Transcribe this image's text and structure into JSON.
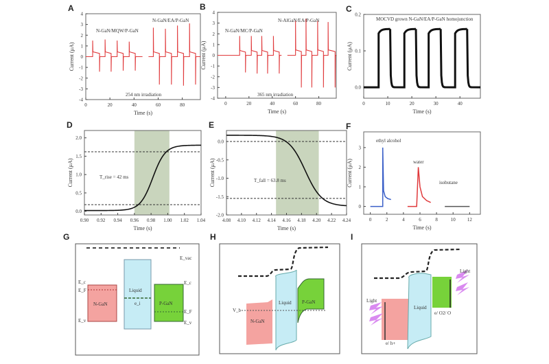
{
  "colors": {
    "red": "#e0393b",
    "blue": "#3a5fc8",
    "gray": "#555555",
    "shade": "#c9d5bd",
    "n_region": "#f4a3a0",
    "liquid": "#c6ecf5",
    "p_region": "#77d23a",
    "lightning": "#d98af0"
  },
  "chart_data": [
    {
      "id": "A",
      "type": "line",
      "panel_label": "A",
      "xlabel": "Time (s)",
      "ylabel": "Current (μA)",
      "xlim": [
        0,
        95
      ],
      "ylim": [
        -4,
        4
      ],
      "xticks": [
        0,
        20,
        40,
        60,
        80
      ],
      "yticks": [
        -4,
        -3,
        -2,
        -1,
        0,
        1,
        2,
        3,
        4
      ],
      "annotations": [
        "N-GaN/MQW/P-GaN",
        "N-GaN/EA/P-GaN",
        "254 nm irradiation"
      ],
      "groups": [
        {
          "range": [
            0,
            47
          ],
          "plateau": 0.3,
          "on": [
            5.7,
            16,
            26,
            36
          ],
          "off": [
            11.4,
            21,
            31,
            41
          ],
          "peak_on": [
            1.5,
            1.6,
            1.5,
            1.4
          ],
          "peak_off": [
            -1.4,
            -1.4,
            -1.3,
            -1.3
          ]
        },
        {
          "range": [
            52,
            95
          ],
          "plateau": 0.3,
          "on": [
            56,
            66,
            76,
            86
          ],
          "off": [
            61,
            71,
            81,
            91
          ],
          "peak_on": [
            2.7,
            2.6,
            2.9,
            3.1
          ],
          "peak_off": [
            -2.6,
            -2.6,
            -2.7,
            -2.6
          ]
        }
      ],
      "color": "red"
    },
    {
      "id": "B",
      "type": "line",
      "panel_label": "B",
      "xlabel": "Time (s)",
      "ylabel": "Current (μA)",
      "xlim": [
        -7,
        95
      ],
      "ylim": [
        -4,
        4
      ],
      "xticks": [
        0,
        20,
        40,
        60,
        80
      ],
      "yticks": [
        -4,
        -3,
        -2,
        -1,
        0,
        1,
        2,
        3,
        4
      ],
      "annotations": [
        "N-GaN/MC/P-GaN",
        "N-AlGaN/EA/P-GaN",
        "365 nm irradiation"
      ],
      "groups": [
        {
          "range": [
            -7,
            48
          ],
          "plateau": 0.3,
          "on": [
            12,
            22,
            31,
            41
          ],
          "off": [
            17,
            27,
            36,
            46
          ],
          "peak_on": [
            1.8,
            1.8,
            1.8,
            1.8
          ],
          "peak_off": [
            -1.6,
            -1.7,
            -1.7,
            -1.7
          ]
        },
        {
          "range": [
            53,
            95
          ],
          "plateau": 0.35,
          "on": [
            60,
            69,
            79,
            88
          ],
          "off": [
            65,
            74,
            84,
            94
          ],
          "peak_on": [
            3.2,
            3.4,
            3.2,
            3.1
          ],
          "peak_off": [
            -3.0,
            -3.0,
            -3.0,
            -3.0
          ]
        }
      ],
      "color": "red"
    },
    {
      "id": "C",
      "type": "line",
      "panel_label": "C",
      "xlabel": "Time (s)",
      "ylabel": "Current (μA)",
      "xlim": [
        0,
        48.5
      ],
      "ylim": [
        -0.03,
        0.2
      ],
      "xticks": [
        0,
        10,
        20,
        30,
        40
      ],
      "yticks": [
        0.0,
        0.1,
        0.2
      ],
      "annotations": [
        "MOCVD grown N-GaN/EA/P-GaN homojunction"
      ],
      "square_wave": {
        "low": 0.0,
        "high": 0.16,
        "on": [
          6.2,
          16.9,
          27,
          38
        ],
        "off": [
          11,
          21.7,
          32,
          43
        ]
      },
      "color": "black"
    },
    {
      "id": "D",
      "type": "line",
      "panel_label": "D",
      "xlabel": "Time (s)",
      "ylabel": "Current (μA)",
      "xlim": [
        0.9,
        1.04
      ],
      "ylim": [
        -0.1,
        2.2
      ],
      "xticks": [
        0.9,
        0.92,
        0.94,
        0.96,
        0.98,
        1.0,
        1.02,
        1.04
      ],
      "yticks": [
        0.0,
        0.5,
        1.0,
        1.5,
        2.0
      ],
      "annotations": [
        "T_rise = 42 ms"
      ],
      "shaded": [
        0.96,
        1.002
      ],
      "dashed_levels": [
        0.18,
        1.62
      ],
      "sigmoid": {
        "low": 0.02,
        "high": 1.8,
        "center": 0.982,
        "width": 0.0075
      },
      "color": "black"
    },
    {
      "id": "E",
      "type": "line",
      "panel_label": "E",
      "xlabel": "Time (s)",
      "ylabel": "Current (μA)",
      "xlim": [
        4.08,
        4.24
      ],
      "ylim": [
        -2.0,
        0.3
      ],
      "xticks": [
        4.08,
        4.1,
        4.12,
        4.14,
        4.16,
        4.18,
        4.2,
        4.22,
        4.24
      ],
      "yticks": [
        0.0,
        -0.5,
        -1.0,
        -1.5,
        -2.0
      ],
      "annotations": [
        "T_fall = 63.8 ms"
      ],
      "shaded": [
        4.146,
        4.203
      ],
      "dashed_levels": [
        0.0,
        -1.55
      ],
      "sigmoid": {
        "low": -1.76,
        "high": 0.17,
        "center": 4.185,
        "width": -0.011
      },
      "color": "black"
    },
    {
      "id": "F",
      "type": "line",
      "panel_label": "F",
      "xlabel": "Time (s)",
      "ylabel": "Current (μA)",
      "xlim": [
        -0.8,
        13.3
      ],
      "ylim": [
        -0.4,
        3.8
      ],
      "xticks": [
        0,
        2,
        4,
        6,
        8,
        10,
        12
      ],
      "yticks": [
        0,
        1,
        2,
        3
      ],
      "series": [
        {
          "name": "ethyl alcohol",
          "color": "blue",
          "x": [
            0,
            1.5,
            1.5,
            1.6,
            1.8,
            2.1,
            2.5
          ],
          "y": [
            0,
            0,
            3.0,
            0.8,
            0.5,
            0.4,
            0.35
          ]
        },
        {
          "name": "water",
          "color": "red",
          "x": [
            4.5,
            5.6,
            5.8,
            6.0,
            6.3,
            6.8,
            7.3
          ],
          "y": [
            0,
            0,
            2.0,
            1.0,
            0.5,
            0.3,
            0.2
          ]
        },
        {
          "name": "isobutane",
          "color": "gray",
          "x": [
            9,
            12
          ],
          "y": [
            0,
            0
          ]
        }
      ]
    }
  ],
  "diagrams": {
    "G": {
      "panel_label": "G",
      "e_vac": "E_vac",
      "e_c_left": "E_c",
      "e_f_left": "E_F",
      "e_v_left": "E_v",
      "n_label": "N-GaN",
      "liquid_label": "Liquid",
      "e_liquid": "e_i",
      "p_label": "P-GaN",
      "e_c_right": "E_c",
      "e_f_right": "E_F",
      "e_v_right": "E_v"
    },
    "H": {
      "panel_label": "H",
      "v_label": "V_b",
      "n_label": "N-GaN",
      "liquid_label": "Liquid",
      "p_label": "P-GaN"
    },
    "I": {
      "panel_label": "I",
      "liquid_label": "Liquid",
      "light_left": "Light",
      "light_right": "Light",
      "label_bottom_left": "e/ h+",
      "label_right": "e/ O2/ O"
    }
  }
}
